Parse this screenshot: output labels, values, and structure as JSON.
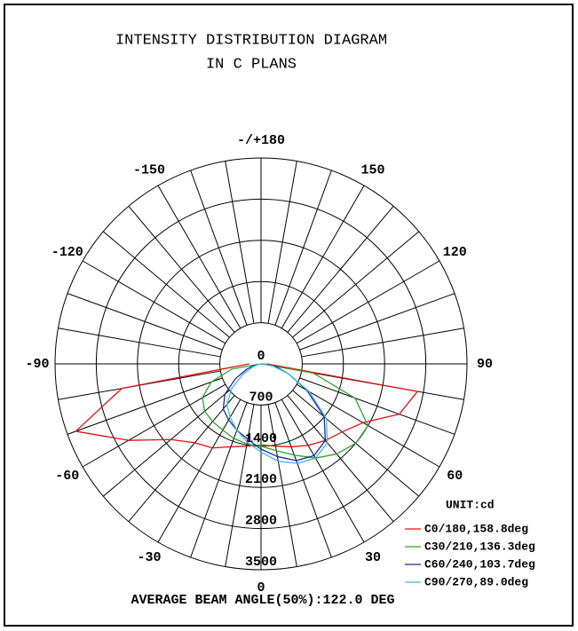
{
  "chart_data": {
    "type": "polar",
    "title": "INTENSITY DISTRIBUTION DIAGRAM",
    "subtitle": "IN C PLANS",
    "unit_label": "UNIT:cd",
    "footer": "AVERAGE BEAM ANGLE(50%):122.0 DEG",
    "rlim": [
      0,
      3500
    ],
    "rticks": [
      0,
      700,
      1400,
      2100,
      2800,
      3500
    ],
    "thetaticks": [
      {
        "value": 180,
        "label": "-/+180"
      },
      150,
      120,
      90,
      60,
      30,
      0,
      -30,
      -60,
      -90,
      -120,
      -150
    ],
    "angles": [
      -90,
      -80,
      -70,
      -60,
      -50,
      -40,
      -30,
      -20,
      -10,
      0,
      10,
      20,
      30,
      40,
      50,
      60,
      70,
      80,
      90
    ],
    "series": [
      {
        "name": "C0/180,158.8deg",
        "color": "#e01010",
        "values": [
          200,
          2400,
          3350,
          2600,
          2000,
          1750,
          1650,
          1500,
          1420,
          1380,
          1420,
          1500,
          1600,
          1700,
          1800,
          2000,
          2500,
          2700,
          100
        ]
      },
      {
        "name": "C30/210,136.3deg",
        "color": "#30a030",
        "values": [
          0,
          500,
          900,
          1150,
          1250,
          1280,
          1300,
          1350,
          1380,
          1400,
          1500,
          1650,
          1850,
          2000,
          2100,
          2100,
          1700,
          900,
          0
        ]
      },
      {
        "name": "C60/240,103.7deg",
        "color": "#1a2a9a",
        "values": [
          0,
          100,
          250,
          500,
          800,
          1000,
          1100,
          1200,
          1300,
          1450,
          1600,
          1750,
          1800,
          1700,
          1400,
          900,
          500,
          250,
          50
        ]
      },
      {
        "name": "C90/270,89.0deg",
        "color": "#40b8d8",
        "values": [
          0,
          50,
          150,
          350,
          650,
          900,
          1050,
          1200,
          1350,
          1500,
          1680,
          1800,
          1850,
          1750,
          1450,
          950,
          500,
          200,
          30
        ]
      }
    ]
  }
}
